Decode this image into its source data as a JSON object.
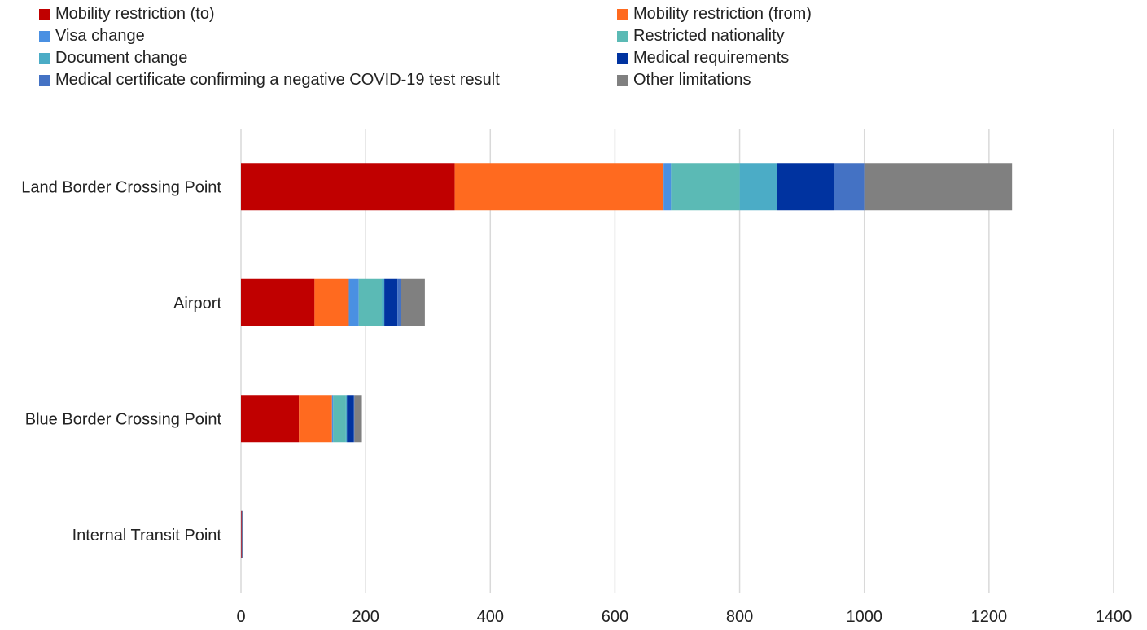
{
  "chart_data": {
    "type": "bar",
    "orientation": "horizontal",
    "stacked": true,
    "categories": [
      "Land Border Crossing Point",
      "Airport",
      "Blue Border Crossing Point",
      "Internal Transit Point"
    ],
    "series": [
      {
        "name": "Mobility restriction (to)",
        "color": "#C00000",
        "values": [
          343,
          118,
          93,
          1
        ]
      },
      {
        "name": "Mobility restriction (from)",
        "color": "#FF6A1F",
        "values": [
          335,
          55,
          53,
          0
        ]
      },
      {
        "name": "Visa change",
        "color": "#4A90E2",
        "values": [
          12,
          16,
          2,
          0
        ]
      },
      {
        "name": "Restricted nationality",
        "color": "#5BBAB5",
        "values": [
          110,
          37,
          20,
          0
        ]
      },
      {
        "name": "Document change",
        "color": "#4BACC6",
        "values": [
          60,
          4,
          2,
          0
        ]
      },
      {
        "name": "Medical requirements",
        "color": "#0033A0",
        "values": [
          92,
          21,
          11,
          0
        ]
      },
      {
        "name": "Medical certificate confirming a negative COVID-19 test result",
        "color": "#4472C4",
        "values": [
          48,
          5,
          1,
          1
        ]
      },
      {
        "name": "Other limitations",
        "color": "#808080",
        "values": [
          237,
          39,
          12,
          1
        ]
      }
    ],
    "xlim": [
      0,
      1400
    ],
    "xticks": [
      "0",
      "200",
      "400",
      "600",
      "800",
      "1000",
      "1200",
      "1400"
    ],
    "grid": "vertical",
    "legend_position": "top"
  }
}
